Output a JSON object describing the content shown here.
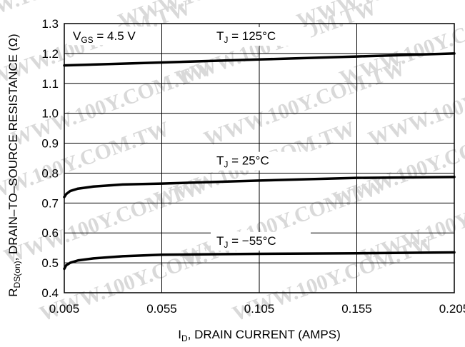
{
  "chart_data": {
    "type": "line",
    "xlabel": {
      "main": "I",
      "sub": "D",
      "rest": ", DRAIN CURRENT (AMPS)"
    },
    "ylabel": {
      "main": "R",
      "sub": "DS(on)",
      "rest": ", DRAIN–TO–SOURCE RESISTANCE (Ω)"
    },
    "xlim": [
      0.005,
      0.205
    ],
    "ylim": [
      0.4,
      1.3
    ],
    "x_ticks": [
      "0.005",
      "0.055",
      "0.105",
      "0.155",
      "0.205"
    ],
    "y_ticks": [
      "0.4",
      "0.5",
      "0.6",
      "0.7",
      "0.8",
      "0.9",
      "1.0",
      "1.1",
      "1.2",
      "1.3"
    ],
    "grid": true,
    "condition_label": {
      "main": "V",
      "sub": "GS",
      "rest": " = 4.5 V"
    },
    "series": [
      {
        "name": {
          "main": "T",
          "sub": "J",
          "rest": " = 125°C"
        },
        "x": [
          0.005,
          0.055,
          0.105,
          0.155,
          0.205
        ],
        "y": [
          1.16,
          1.17,
          1.18,
          1.19,
          1.2
        ]
      },
      {
        "name": {
          "main": "T",
          "sub": "J",
          "rest": " = 25°C"
        },
        "x": [
          0.005,
          0.006,
          0.008,
          0.012,
          0.02,
          0.035,
          0.055,
          0.105,
          0.155,
          0.205
        ],
        "y": [
          0.72,
          0.73,
          0.74,
          0.748,
          0.755,
          0.762,
          0.765,
          0.775,
          0.784,
          0.787
        ]
      },
      {
        "name": {
          "main": "T",
          "sub": "J",
          "rest": " = −55°C"
        },
        "x": [
          0.005,
          0.006,
          0.008,
          0.012,
          0.02,
          0.035,
          0.055,
          0.105,
          0.155,
          0.205
        ],
        "y": [
          0.48,
          0.492,
          0.5,
          0.508,
          0.515,
          0.522,
          0.527,
          0.53,
          0.532,
          0.535
        ]
      }
    ],
    "watermark": "WWW.100Y.COM.TW"
  }
}
